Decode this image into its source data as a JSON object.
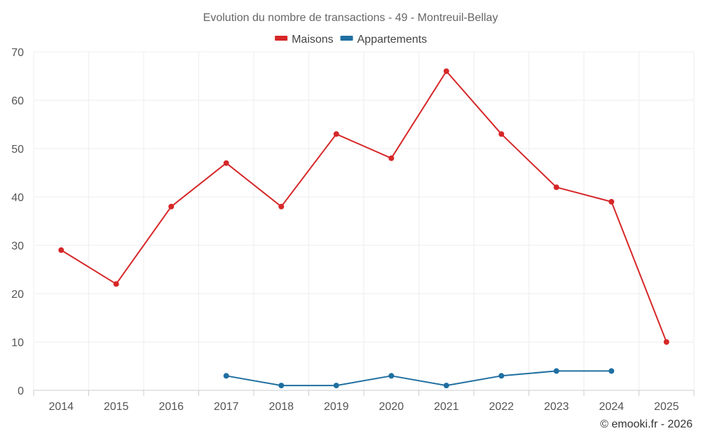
{
  "chart_data": {
    "type": "line",
    "title": "Evolution du nombre de transactions - 49 - Montreuil-Bellay",
    "categories": [
      "2014",
      "2015",
      "2016",
      "2017",
      "2018",
      "2019",
      "2020",
      "2021",
      "2022",
      "2023",
      "2024",
      "2025"
    ],
    "ylim": [
      0,
      70
    ],
    "yticks": [
      0,
      10,
      20,
      30,
      40,
      50,
      60,
      70
    ],
    "grid": true,
    "legend_position": "top-center",
    "series": [
      {
        "name": "Maisons",
        "color": "#d62728",
        "values": [
          29,
          22,
          38,
          47,
          38,
          53,
          48,
          66,
          53,
          42,
          39,
          10
        ]
      },
      {
        "name": "Appartements",
        "color": "#1f6fa1",
        "values": [
          null,
          null,
          null,
          3,
          1,
          1,
          3,
          1,
          3,
          4,
          4,
          null
        ]
      }
    ],
    "credit": "© emooki.fr - 2026"
  }
}
